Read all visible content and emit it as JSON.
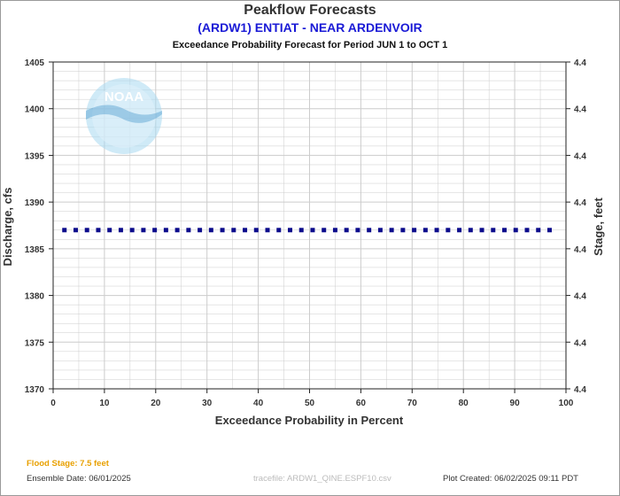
{
  "header": {
    "title": "Peakflow Forecasts",
    "station": "(ARDW1) ENTIAT - NEAR ARDENVOIR",
    "period": "Exceedance Probability Forecast for Period JUN 1 to OCT 1"
  },
  "logo_text": "NOAA",
  "footer": {
    "flood_stage": "Flood Stage: 7.5 feet",
    "ensemble_date": "Ensemble Date: 06/01/2025",
    "trace_file": "tracefile: ARDW1_QINE.ESPF10.csv",
    "plot_created": "Plot Created: 06/02/2025 09:11 PDT"
  },
  "colors": {
    "series": "#0c0c8c",
    "flood_stage": "#e8a000",
    "title_blue": "#1a1ad6",
    "grid": "#cccccc"
  },
  "chart_data": {
    "type": "scatter",
    "title": "Peakflow Forecasts",
    "subtitle": "(ARDW1) ENTIAT - NEAR ARDENVOIR",
    "xlabel": "Exceedance Probability in Percent",
    "ylabel": "Discharge, cfs",
    "y2label": "Stage, feet",
    "xlim": [
      0,
      100
    ],
    "ylim": [
      1370,
      1405
    ],
    "x_ticks": [
      0,
      10,
      20,
      30,
      40,
      50,
      60,
      70,
      80,
      90,
      100
    ],
    "y_ticks": [
      1370,
      1375,
      1380,
      1385,
      1390,
      1395,
      1400,
      1405
    ],
    "y2_tick_labels": [
      "4.4",
      "4.4",
      "4.4",
      "4.4",
      "4.4",
      "4.4",
      "4.4",
      "4.4"
    ],
    "grid": true,
    "series": [
      {
        "x": [
          2.2,
          4.4,
          6.6,
          8.8,
          11,
          13.2,
          15.4,
          17.6,
          19.8,
          22,
          24.2,
          26.4,
          28.6,
          30.8,
          33,
          35.2,
          37.4,
          39.6,
          41.8,
          44,
          46.2,
          48.4,
          50.6,
          52.8,
          55,
          57.2,
          59.4,
          61.6,
          63.8,
          66,
          68.2,
          70.4,
          72.6,
          74.8,
          77,
          79.2,
          81.4,
          83.6,
          85.8,
          88,
          90.2,
          92.4,
          94.6,
          96.8
        ],
        "values": [
          1387,
          1387,
          1387,
          1387,
          1387,
          1387,
          1387,
          1387,
          1387,
          1387,
          1387,
          1387,
          1387,
          1387,
          1387,
          1387,
          1387,
          1387,
          1387,
          1387,
          1387,
          1387,
          1387,
          1387,
          1387,
          1387,
          1387,
          1387,
          1387,
          1387,
          1387,
          1387,
          1387,
          1387,
          1387,
          1387,
          1387,
          1387,
          1387,
          1387,
          1387,
          1387,
          1387,
          1387
        ]
      }
    ]
  }
}
